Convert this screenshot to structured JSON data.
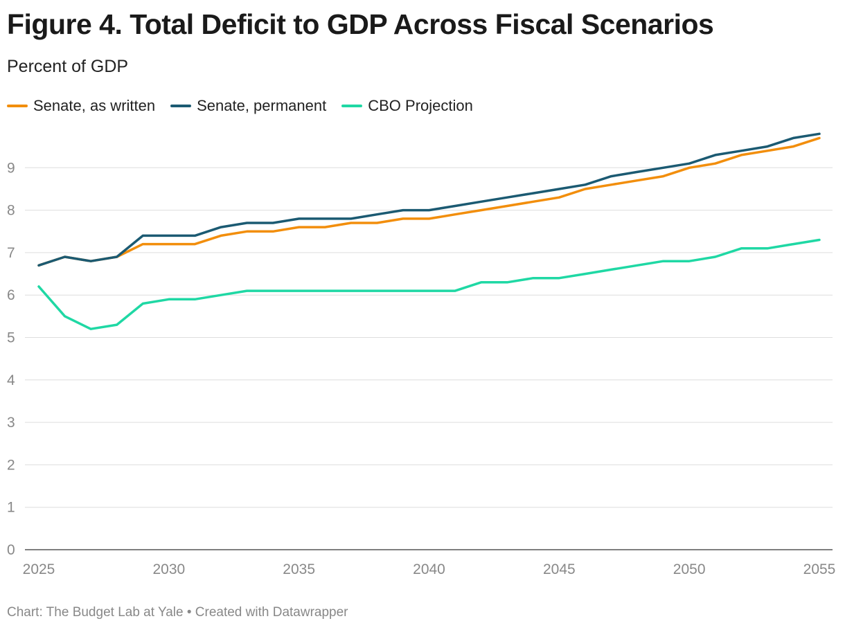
{
  "chart_data": {
    "type": "line",
    "title": "Figure 4. Total Deficit to GDP Across Fiscal Scenarios",
    "subtitle": "Percent of GDP",
    "xlabel": "",
    "ylabel": "",
    "x": [
      2025,
      2026,
      2027,
      2028,
      2029,
      2030,
      2031,
      2032,
      2033,
      2034,
      2035,
      2036,
      2037,
      2038,
      2039,
      2040,
      2041,
      2042,
      2043,
      2044,
      2045,
      2046,
      2047,
      2048,
      2049,
      2050,
      2051,
      2052,
      2053,
      2054,
      2055
    ],
    "x_ticks": [
      2025,
      2030,
      2035,
      2040,
      2045,
      2050,
      2055
    ],
    "y_ticks": [
      0,
      1,
      2,
      3,
      4,
      5,
      6,
      7,
      8,
      9
    ],
    "xlim": [
      2025,
      2055
    ],
    "ylim": [
      0,
      10
    ],
    "grid": "horizontal",
    "legend_position": "top-left",
    "series": [
      {
        "name": "Senate, as written",
        "color": "#f28e0c",
        "values": [
          6.7,
          6.9,
          6.8,
          6.9,
          7.2,
          7.2,
          7.2,
          7.4,
          7.5,
          7.5,
          7.6,
          7.6,
          7.7,
          7.7,
          7.8,
          7.8,
          7.9,
          8.0,
          8.1,
          8.2,
          8.3,
          8.5,
          8.6,
          8.7,
          8.8,
          9.0,
          9.1,
          9.3,
          9.4,
          9.5,
          9.7
        ]
      },
      {
        "name": "Senate, permanent",
        "color": "#1b5a72",
        "values": [
          6.7,
          6.9,
          6.8,
          6.9,
          7.4,
          7.4,
          7.4,
          7.6,
          7.7,
          7.7,
          7.8,
          7.8,
          7.8,
          7.9,
          8.0,
          8.0,
          8.1,
          8.2,
          8.3,
          8.4,
          8.5,
          8.6,
          8.8,
          8.9,
          9.0,
          9.1,
          9.3,
          9.4,
          9.5,
          9.7,
          9.8
        ]
      },
      {
        "name": "CBO Projection",
        "color": "#1fd8a4",
        "values": [
          6.2,
          5.5,
          5.2,
          5.3,
          5.8,
          5.9,
          5.9,
          6.0,
          6.1,
          6.1,
          6.1,
          6.1,
          6.1,
          6.1,
          6.1,
          6.1,
          6.1,
          6.3,
          6.3,
          6.4,
          6.4,
          6.5,
          6.6,
          6.7,
          6.8,
          6.8,
          6.9,
          7.1,
          7.1,
          7.2,
          7.3
        ]
      }
    ]
  },
  "footer": {
    "credit": "Chart: The Budget Lab at Yale • Created with Datawrapper"
  }
}
